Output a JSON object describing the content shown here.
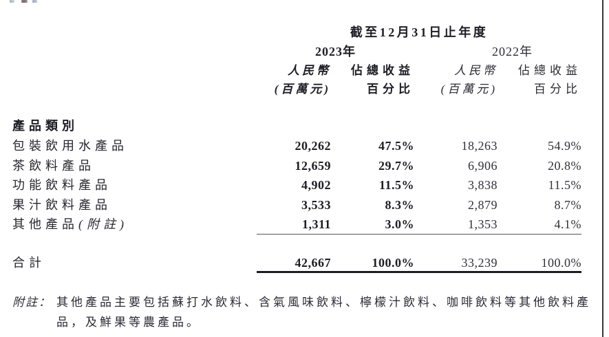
{
  "page": {
    "right_rule_color": "#36363d"
  },
  "table": {
    "period_title": "截至12月31日止年度",
    "year_2023": "2023年",
    "year_2022": "2022年",
    "col_headers": {
      "rmb_line1": "人民幣",
      "rmb_line2": "(百萬元)",
      "pct_line1": "佔總收益",
      "pct_line2": "百分比"
    },
    "section_label": "產品類別",
    "rows": [
      {
        "label": "包裝飲用水產品",
        "note": "",
        "v2023_rmb": "20,262",
        "v2023_pct": "47.5%",
        "v2022_rmb": "18,263",
        "v2022_pct": "54.9%"
      },
      {
        "label": "茶飲料產品",
        "note": "",
        "v2023_rmb": "12,659",
        "v2023_pct": "29.7%",
        "v2022_rmb": "6,906",
        "v2022_pct": "20.8%"
      },
      {
        "label": "功能飲料產品",
        "note": "",
        "v2023_rmb": "4,902",
        "v2023_pct": "11.5%",
        "v2022_rmb": "3,838",
        "v2022_pct": "11.5%"
      },
      {
        "label": "果汁飲料產品",
        "note": "",
        "v2023_rmb": "3,533",
        "v2023_pct": "8.3%",
        "v2022_rmb": "2,879",
        "v2022_pct": "8.7%"
      },
      {
        "label": "其他產品",
        "note": "(附註)",
        "v2023_rmb": "1,311",
        "v2023_pct": "3.0%",
        "v2022_rmb": "1,353",
        "v2022_pct": "4.1%"
      }
    ],
    "total": {
      "label": "合計",
      "v2023_rmb": "42,667",
      "v2023_pct": "100.0%",
      "v2022_rmb": "33,239",
      "v2022_pct": "100.0%"
    }
  },
  "footnote": {
    "label": "附註：",
    "line1": "其他產品主要包括蘇打水飲料、含氣風味飲料、檸檬汁飲料、咖啡飲料等其他飲料產",
    "line2": "品，及鮮果等農產品。"
  }
}
